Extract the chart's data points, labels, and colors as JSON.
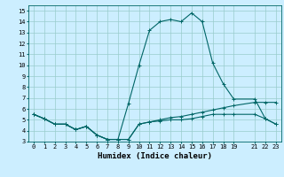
{
  "xlabel": "Humidex (Indice chaleur)",
  "background_color": "#cceeff",
  "grid_color": "#99cccc",
  "line_color": "#006666",
  "xlim": [
    -0.5,
    23.5
  ],
  "ylim": [
    3,
    15.5
  ],
  "xticks": [
    0,
    1,
    2,
    3,
    4,
    5,
    6,
    7,
    8,
    9,
    10,
    11,
    12,
    13,
    14,
    15,
    16,
    17,
    18,
    19,
    21,
    22,
    23
  ],
  "yticks": [
    3,
    4,
    5,
    6,
    7,
    8,
    9,
    10,
    11,
    12,
    13,
    14,
    15
  ],
  "curve1_x": [
    0,
    1,
    2,
    3,
    4,
    5,
    6,
    7,
    8,
    9,
    10,
    11,
    12,
    13,
    14,
    15,
    16,
    17,
    18,
    19,
    21,
    22,
    23
  ],
  "curve1_y": [
    5.5,
    5.1,
    4.6,
    4.6,
    4.1,
    4.4,
    3.6,
    3.2,
    3.2,
    3.2,
    4.6,
    4.8,
    4.9,
    5.0,
    5.0,
    5.1,
    5.3,
    5.5,
    5.5,
    5.5,
    5.5,
    5.1,
    4.6
  ],
  "curve2_x": [
    0,
    1,
    2,
    3,
    4,
    5,
    6,
    7,
    8,
    9,
    10,
    11,
    12,
    13,
    14,
    15,
    16,
    17,
    18,
    19,
    21,
    22,
    23
  ],
  "curve2_y": [
    5.5,
    5.1,
    4.6,
    4.6,
    4.1,
    4.4,
    3.6,
    3.2,
    3.2,
    6.5,
    10.0,
    13.2,
    14.0,
    14.2,
    14.0,
    14.8,
    14.0,
    10.2,
    8.3,
    6.9,
    6.9,
    5.1,
    4.6
  ],
  "curve3_x": [
    0,
    1,
    2,
    3,
    4,
    5,
    6,
    7,
    8,
    9,
    10,
    11,
    12,
    13,
    14,
    15,
    16,
    17,
    18,
    19,
    21,
    22,
    23
  ],
  "curve3_y": [
    5.5,
    5.1,
    4.6,
    4.6,
    4.1,
    4.4,
    3.6,
    3.2,
    3.2,
    3.2,
    4.6,
    4.8,
    5.0,
    5.2,
    5.3,
    5.5,
    5.7,
    5.9,
    6.1,
    6.3,
    6.6,
    6.6,
    6.6
  ],
  "marker_size": 2.5,
  "line_width": 0.8,
  "tick_fontsize": 5.0,
  "xlabel_fontsize": 6.5
}
